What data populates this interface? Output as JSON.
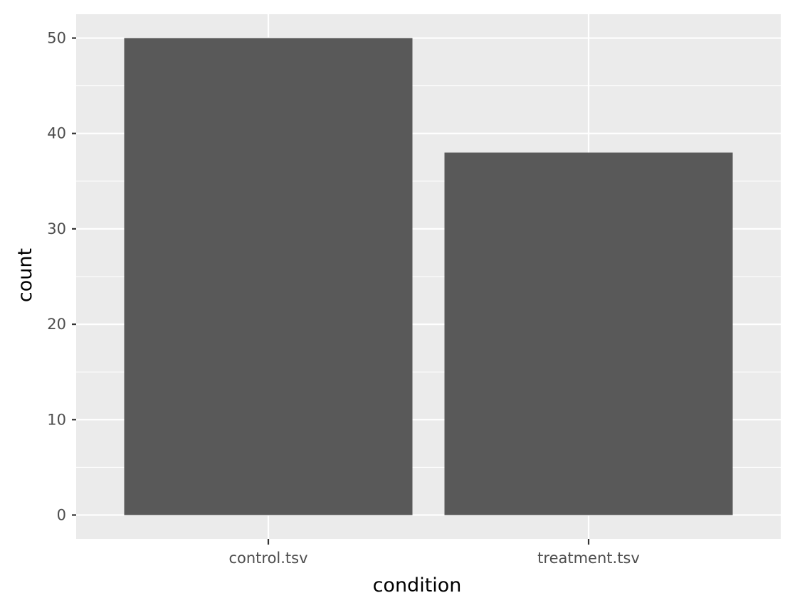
{
  "chart_data": {
    "type": "bar",
    "categories": [
      "control.tsv",
      "treatment.tsv"
    ],
    "values": [
      50,
      38
    ],
    "xlabel": "condition",
    "ylabel": "count",
    "ylim": [
      -2.5,
      52.5
    ],
    "yticks": [
      0,
      10,
      20,
      30,
      40,
      50
    ],
    "grid": true,
    "colors": {
      "panel": "#ebebeb",
      "grid": "#ffffff",
      "bar": "#595959",
      "tick_label": "#4d4d4d",
      "tick_mark": "#333333"
    }
  }
}
